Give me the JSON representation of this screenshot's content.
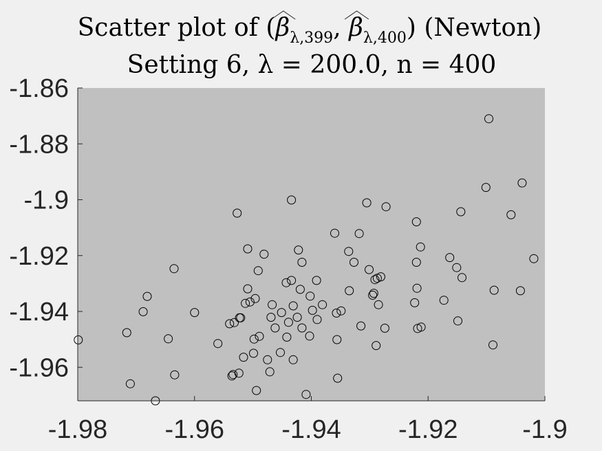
{
  "chart_data": {
    "type": "scatter",
    "title_line1_text": "Scatter plot of (",
    "title_beta": "β",
    "title_sub1": "λ,399",
    "title_sep": ", ",
    "title_sub2": "λ,400",
    "title_line1_tail": ") (Newton)",
    "title_line2": "Setting 6, λ = 200.0, n = 400",
    "xlim": [
      -1.98,
      -1.9
    ],
    "ylim": [
      -1.972,
      -1.86
    ],
    "xticks": [
      -1.98,
      -1.96,
      -1.94,
      -1.92,
      -1.9
    ],
    "xtick_labels": [
      "-1.98",
      "-1.96",
      "-1.94",
      "-1.92",
      "-1.9"
    ],
    "yticks": [
      -1.86,
      -1.88,
      -1.9,
      -1.92,
      -1.94,
      -1.96
    ],
    "ytick_labels": [
      "-1.86",
      "-1.88",
      "-1.9",
      "-1.92",
      "-1.94",
      "-1.96"
    ],
    "plot_background": "#c0c0c0",
    "marker": "open-circle",
    "marker_color": "#000000",
    "grid": false,
    "points": [
      [
        -1.9799,
        -1.9502
      ],
      [
        -1.9716,
        -1.9476
      ],
      [
        -1.971,
        -1.9659
      ],
      [
        -1.9688,
        -1.9401
      ],
      [
        -1.9681,
        -1.9346
      ],
      [
        -1.9667,
        -1.972
      ],
      [
        -1.9645,
        -1.9498
      ],
      [
        -1.9635,
        -1.9247
      ],
      [
        -1.9634,
        -1.9627
      ],
      [
        -1.96,
        -1.9404
      ],
      [
        -1.956,
        -1.9515
      ],
      [
        -1.954,
        -1.9444
      ],
      [
        -1.9536,
        -1.9631
      ],
      [
        -1.9534,
        -1.9626
      ],
      [
        -1.9532,
        -1.944
      ],
      [
        -1.9527,
        -1.9048
      ],
      [
        -1.9524,
        -1.9621
      ],
      [
        -1.9523,
        -1.9423
      ],
      [
        -1.9521,
        -1.9423
      ],
      [
        -1.9516,
        -1.9564
      ],
      [
        -1.9513,
        -1.9371
      ],
      [
        -1.9509,
        -1.9319
      ],
      [
        -1.9509,
        -1.9176
      ],
      [
        -1.9505,
        -1.9366
      ],
      [
        -1.9499,
        -1.955
      ],
      [
        -1.9498,
        -1.9499
      ],
      [
        -1.9496,
        -1.9354
      ],
      [
        -1.9494,
        -1.9683
      ],
      [
        -1.9491,
        -1.9254
      ],
      [
        -1.9489,
        -1.9489
      ],
      [
        -1.9481,
        -1.9195
      ],
      [
        -1.9475,
        -1.9573
      ],
      [
        -1.9471,
        -1.9616
      ],
      [
        -1.9469,
        -1.9421
      ],
      [
        -1.9467,
        -1.9376
      ],
      [
        -1.9462,
        -1.9459
      ],
      [
        -1.9453,
        -1.9547
      ],
      [
        -1.9451,
        -1.9404
      ],
      [
        -1.9443,
        -1.9297
      ],
      [
        -1.9442,
        -1.9492
      ],
      [
        -1.9439,
        -1.9439
      ],
      [
        -1.9434,
        -1.9001
      ],
      [
        -1.9434,
        -1.9289
      ],
      [
        -1.9431,
        -1.9573
      ],
      [
        -1.9431,
        -1.938
      ],
      [
        -1.9424,
        -1.9421
      ],
      [
        -1.9422,
        -1.918
      ],
      [
        -1.9419,
        -1.9321
      ],
      [
        -1.9416,
        -1.9224
      ],
      [
        -1.9416,
        -1.9459
      ],
      [
        -1.9409,
        -1.9697
      ],
      [
        -1.9403,
        -1.9488
      ],
      [
        -1.9402,
        -1.9345
      ],
      [
        -1.9398,
        -1.9396
      ],
      [
        -1.9391,
        -1.9289
      ],
      [
        -1.939,
        -1.9429
      ],
      [
        -1.9381,
        -1.9376
      ],
      [
        -1.936,
        -1.912
      ],
      [
        -1.9357,
        -1.9406
      ],
      [
        -1.9356,
        -1.9501
      ],
      [
        -1.9355,
        -1.9639
      ],
      [
        -1.9349,
        -1.9398
      ],
      [
        -1.9336,
        -1.9185
      ],
      [
        -1.9335,
        -1.9326
      ],
      [
        -1.9327,
        -1.9224
      ],
      [
        -1.9318,
        -1.9121
      ],
      [
        -1.9315,
        -1.9452
      ],
      [
        -1.9305,
        -1.9011
      ],
      [
        -1.9301,
        -1.925
      ],
      [
        -1.9295,
        -1.9342
      ],
      [
        -1.9293,
        -1.9335
      ],
      [
        -1.9291,
        -1.9286
      ],
      [
        -1.9289,
        -1.9522
      ],
      [
        -1.9287,
        -1.9281
      ],
      [
        -1.9285,
        -1.9376
      ],
      [
        -1.9281,
        -1.9276
      ],
      [
        -1.9274,
        -1.946
      ],
      [
        -1.9272,
        -1.9025
      ],
      [
        -1.9223,
        -1.9369
      ],
      [
        -1.922,
        -1.9224
      ],
      [
        -1.922,
        -1.9079
      ],
      [
        -1.9219,
        -1.9317
      ],
      [
        -1.9218,
        -1.9461
      ],
      [
        -1.9213,
        -1.9169
      ],
      [
        -1.9212,
        -1.9456
      ],
      [
        -1.9173,
        -1.936
      ],
      [
        -1.9163,
        -1.9207
      ],
      [
        -1.9151,
        -1.9243
      ],
      [
        -1.9149,
        -1.9434
      ],
      [
        -1.9144,
        -1.9043
      ],
      [
        -1.9142,
        -1.9279
      ],
      [
        -1.9101,
        -1.8956
      ],
      [
        -1.9096,
        -1.871
      ],
      [
        -1.9089,
        -1.952
      ],
      [
        -1.9087,
        -1.9324
      ],
      [
        -1.9058,
        -1.9054
      ],
      [
        -1.9042,
        -1.9326
      ],
      [
        -1.9039,
        -1.894
      ],
      [
        -1.9019,
        -1.9211
      ]
    ]
  }
}
